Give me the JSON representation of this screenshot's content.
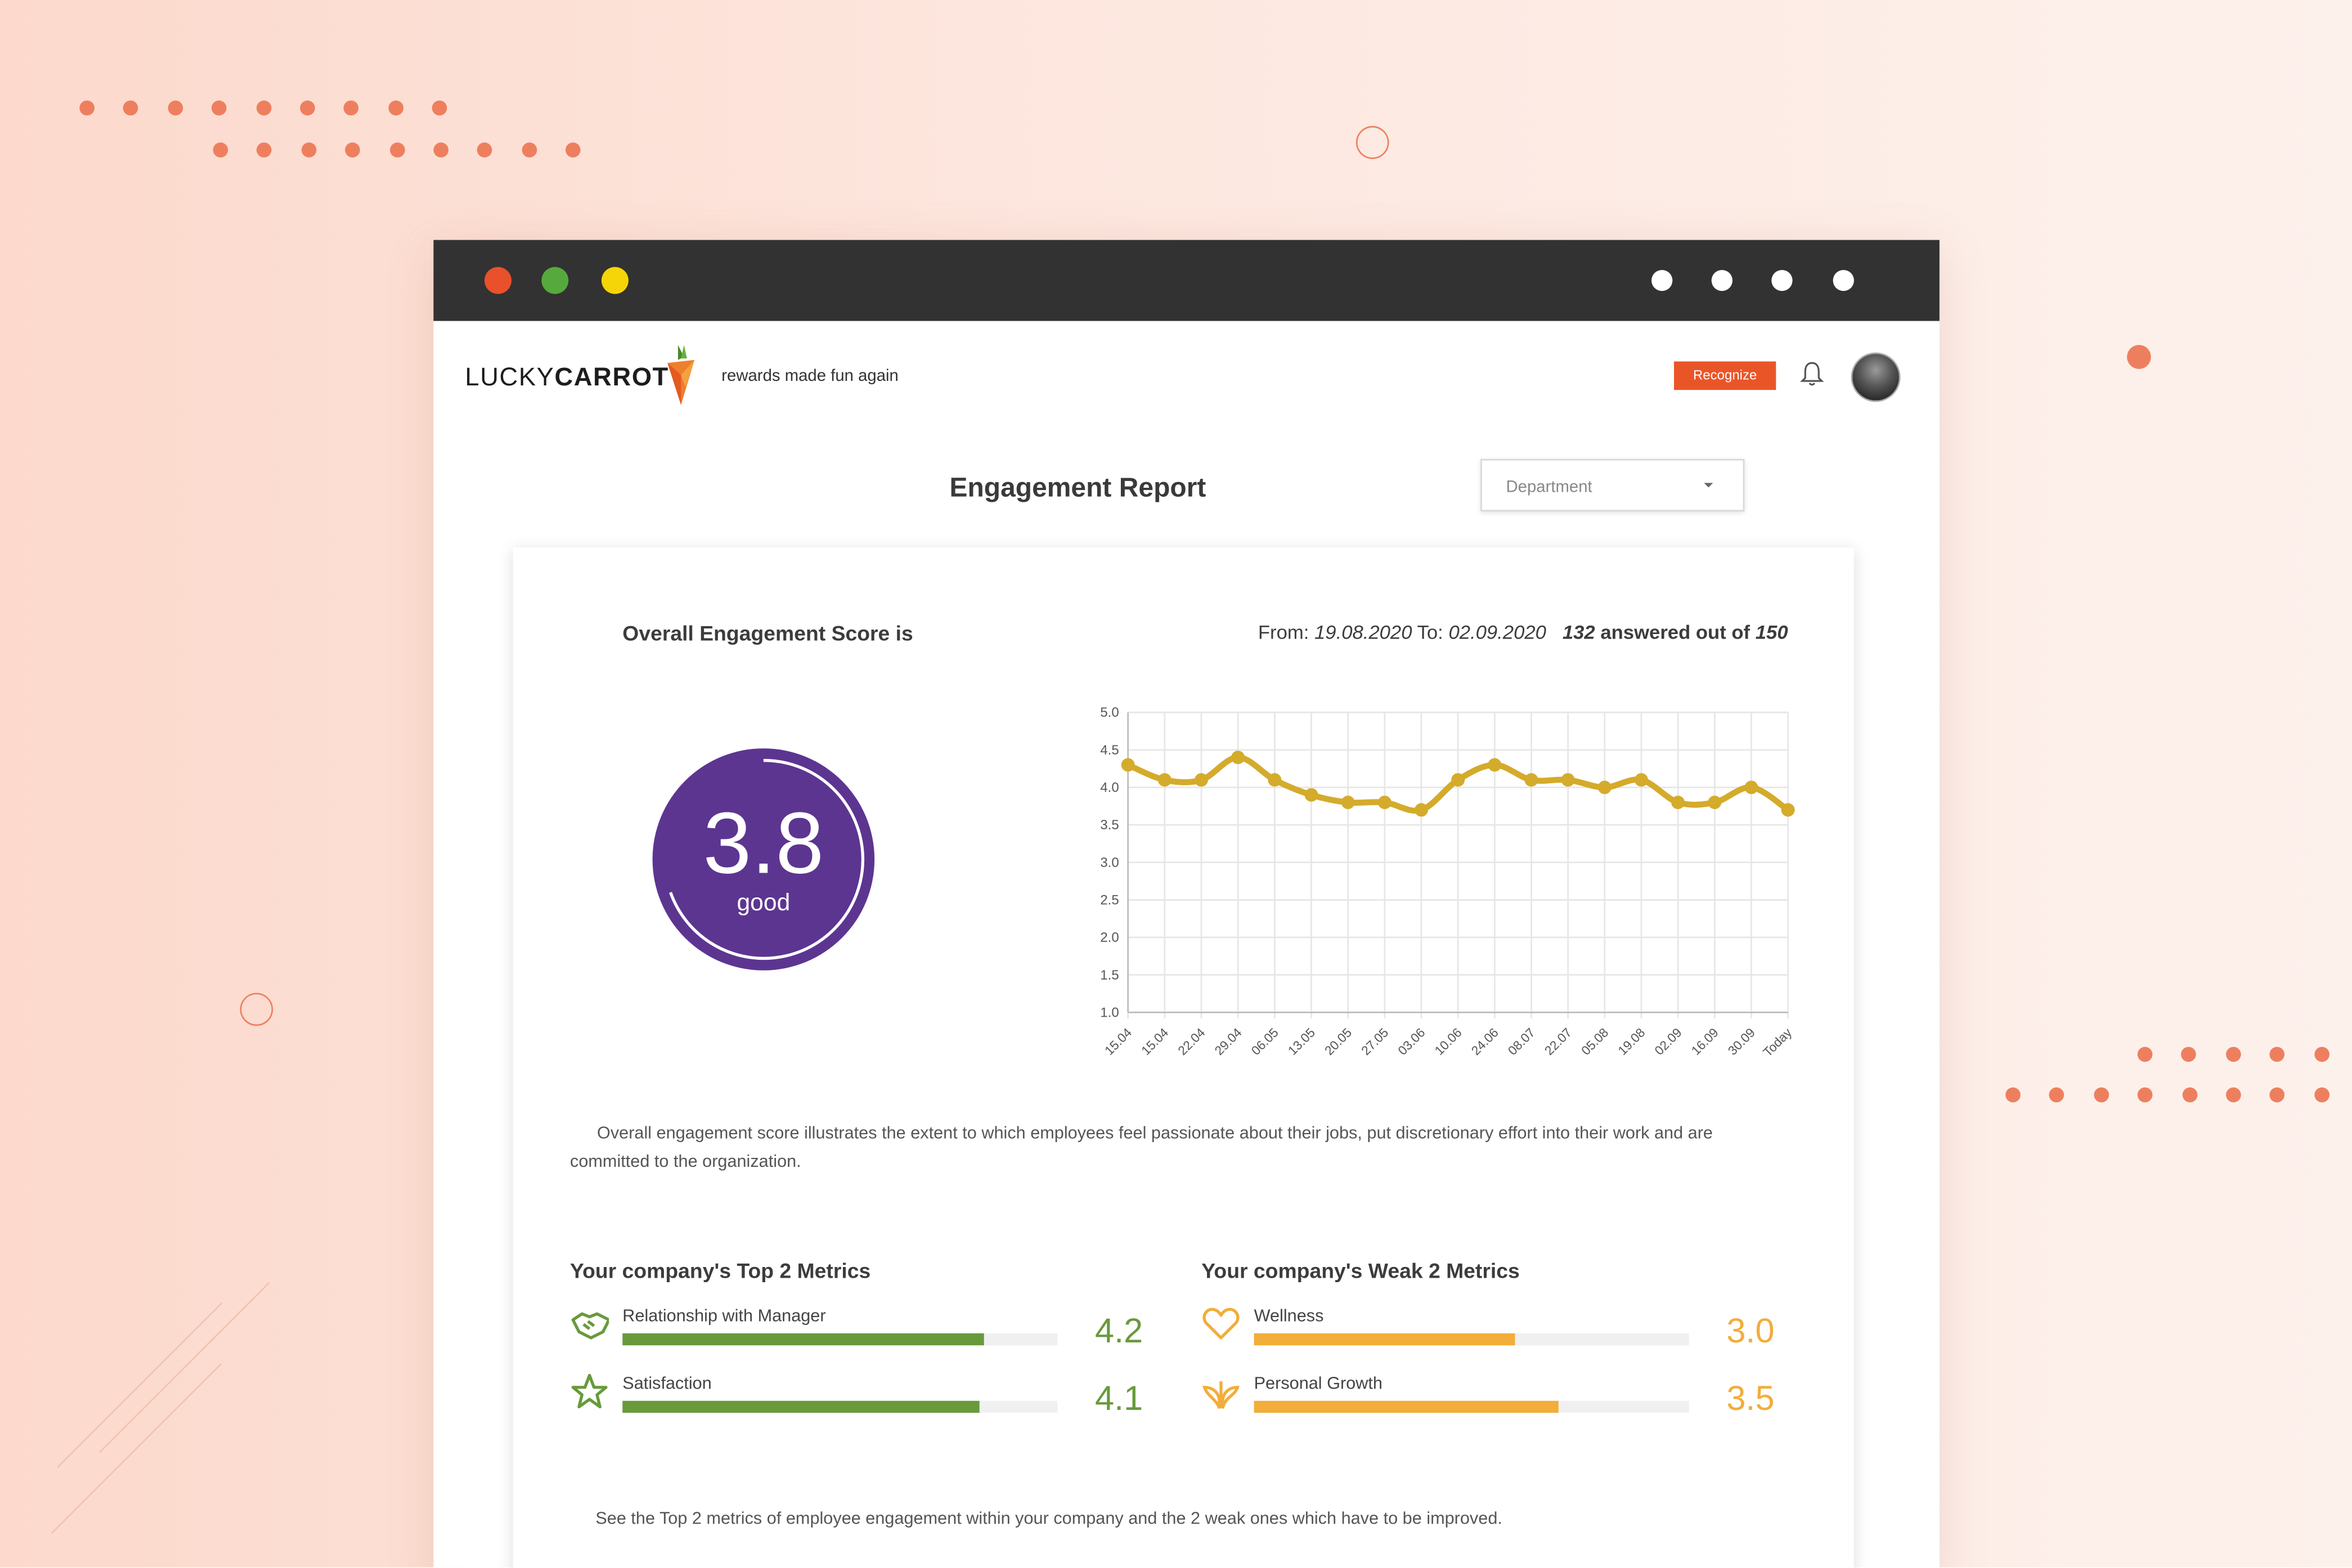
{
  "app": {
    "brand_light": "LUCKY",
    "brand_bold": "CARROT",
    "tagline": "rewards made fun again",
    "recognize_label": "Recognize"
  },
  "report": {
    "title": "Engagement Report",
    "department_placeholder": "Department",
    "score_label": "Overall Engagement Score is",
    "range_from_label": "From:",
    "range_from": "19.08.2020",
    "range_to_label": "To:",
    "range_to": "02.09.2020",
    "answered": "132",
    "answered_text": "answered out of",
    "total": "150",
    "score_value": "3.8",
    "score_word": "good",
    "description": "Overall engagement score illustrates the extent to which employees feel passionate about their jobs, put discretionary effort into their work and are committed to the organization.",
    "footer_note": "See the Top 2 metrics of employee engagement within your company and the 2 weak ones which have to be improved."
  },
  "top_metrics": {
    "title": "Your company's Top 2 Metrics",
    "color": "#689a3c",
    "items": [
      {
        "label": "Relationship with Manager",
        "value": "4.2",
        "fraction": 0.83,
        "icon": "handshake-icon"
      },
      {
        "label": "Satisfaction",
        "value": "4.1",
        "fraction": 0.82,
        "icon": "star-icon"
      }
    ]
  },
  "weak_metrics": {
    "title": "Your company's Weak 2 Metrics",
    "color": "#f2ad3a",
    "items": [
      {
        "label": "Wellness",
        "value": "3.0",
        "fraction": 0.6,
        "icon": "heart-icon"
      },
      {
        "label": "Personal Growth",
        "value": "3.5",
        "fraction": 0.7,
        "icon": "plant-icon"
      }
    ]
  },
  "chart_data": {
    "type": "line",
    "x": [
      "15.04",
      "15.04",
      "22.04",
      "29.04",
      "06.05",
      "13.05",
      "20.05",
      "27.05",
      "03.06",
      "10.06",
      "24.06",
      "08.07",
      "22.07",
      "05.08",
      "19.08",
      "02.09",
      "16.09",
      "30.09",
      "Today"
    ],
    "series": [
      {
        "values": [
          4.3,
          4.1,
          4.1,
          4.4,
          4.1,
          3.9,
          3.8,
          3.8,
          3.7,
          4.1,
          4.3,
          4.1,
          4.1,
          4.0,
          4.1,
          3.8,
          3.8,
          4.0,
          3.7
        ],
        "color": "#d4ab2b"
      }
    ],
    "y_ticks": [
      "5.0",
      "4.5",
      "4.0",
      "3.5",
      "3.0",
      "2.5",
      "2.0",
      "1.5",
      "1.0"
    ],
    "ylim": [
      1.0,
      5.0
    ],
    "grid": true
  },
  "colors": {
    "accent": "#ea5528",
    "score_circle": "#5c3591"
  }
}
